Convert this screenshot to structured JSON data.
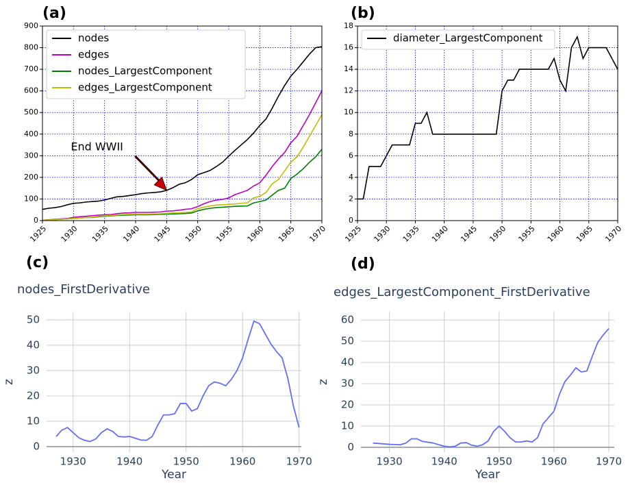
{
  "chart_data": [
    {
      "type": "line",
      "label": "(a)",
      "style": "matplotlib",
      "x": [
        1925,
        1926,
        1927,
        1928,
        1929,
        1930,
        1931,
        1932,
        1933,
        1934,
        1935,
        1936,
        1937,
        1938,
        1939,
        1940,
        1941,
        1942,
        1943,
        1944,
        1945,
        1946,
        1947,
        1948,
        1949,
        1950,
        1951,
        1952,
        1953,
        1954,
        1955,
        1956,
        1957,
        1958,
        1959,
        1960,
        1961,
        1962,
        1963,
        1964,
        1965,
        1966,
        1967,
        1968,
        1969,
        1970
      ],
      "series": [
        {
          "name": "nodes",
          "color": "#000000",
          "values": [
            52,
            57,
            60,
            65,
            73,
            80,
            82,
            86,
            88,
            90,
            95,
            103,
            110,
            112,
            116,
            120,
            125,
            128,
            130,
            133,
            140,
            152,
            168,
            175,
            190,
            212,
            222,
            232,
            250,
            270,
            298,
            325,
            350,
            375,
            405,
            440,
            470,
            520,
            575,
            625,
            668,
            700,
            735,
            770,
            800,
            805
          ]
        },
        {
          "name": "edges",
          "color": "#bf00bf",
          "values": [
            2,
            4,
            6,
            8,
            10,
            15,
            18,
            20,
            23,
            25,
            27,
            28,
            32,
            35,
            36,
            38,
            38,
            38,
            39,
            40,
            44,
            45,
            48,
            52,
            55,
            65,
            78,
            88,
            95,
            98,
            105,
            120,
            130,
            140,
            160,
            175,
            210,
            250,
            285,
            315,
            360,
            390,
            440,
            490,
            545,
            600
          ]
        },
        {
          "name": "nodes_LargestComponent",
          "color": "#008000",
          "values": [
            2,
            3,
            5,
            6,
            8,
            10,
            12,
            14,
            15,
            18,
            20,
            22,
            24,
            25,
            26,
            27,
            27,
            27,
            28,
            29,
            30,
            31,
            32,
            33,
            35,
            45,
            52,
            57,
            60,
            62,
            64,
            66,
            67,
            68,
            82,
            88,
            95,
            118,
            140,
            150,
            195,
            215,
            240,
            270,
            295,
            330
          ]
        },
        {
          "name": "edges_LargestComponent",
          "color": "#bfbf00",
          "values": [
            2,
            3,
            5,
            7,
            8,
            10,
            12,
            14,
            16,
            20,
            22,
            24,
            26,
            28,
            29,
            30,
            30,
            30,
            31,
            32,
            34,
            35,
            36,
            38,
            40,
            55,
            62,
            68,
            72,
            73,
            75,
            77,
            80,
            82,
            105,
            112,
            130,
            170,
            190,
            230,
            270,
            295,
            340,
            390,
            440,
            490
          ]
        }
      ],
      "xlim": [
        1925,
        1970
      ],
      "xticks": [
        1925,
        1930,
        1935,
        1940,
        1945,
        1950,
        1955,
        1960,
        1965,
        1970
      ],
      "ylim": [
        0,
        900
      ],
      "yticks": [
        0,
        100,
        200,
        300,
        400,
        500,
        600,
        700,
        800,
        900
      ],
      "grid": true,
      "grid_color": "#0000ff",
      "legend": "top-left",
      "x_tick_rotation": 45,
      "annotations": [
        {
          "text": "End WWII",
          "x": 1945,
          "y": 140,
          "color": "#cc0000"
        }
      ]
    },
    {
      "type": "line",
      "label": "(b)",
      "style": "matplotlib",
      "x": [
        1925,
        1926,
        1927,
        1928,
        1929,
        1930,
        1931,
        1932,
        1933,
        1934,
        1935,
        1936,
        1937,
        1938,
        1939,
        1940,
        1941,
        1942,
        1943,
        1944,
        1945,
        1946,
        1947,
        1948,
        1949,
        1950,
        1951,
        1952,
        1953,
        1954,
        1955,
        1956,
        1957,
        1958,
        1959,
        1960,
        1961,
        1962,
        1963,
        1964,
        1965,
        1966,
        1967,
        1968,
        1969,
        1970
      ],
      "series": [
        {
          "name": "diameter_LargestComponent",
          "color": "#000000",
          "values": [
            2,
            2,
            5,
            5,
            5,
            6,
            7,
            7,
            7,
            7,
            9,
            9,
            10,
            8,
            8,
            8,
            8,
            8,
            8,
            8,
            8,
            8,
            8,
            8,
            8,
            12,
            13,
            13,
            14,
            14,
            14,
            14,
            14,
            14,
            15,
            13,
            12,
            16,
            17,
            15,
            16,
            16,
            16,
            16,
            15,
            14
          ]
        }
      ],
      "xlim": [
        1925,
        1970
      ],
      "xticks": [
        1925,
        1930,
        1935,
        1940,
        1945,
        1950,
        1955,
        1960,
        1965,
        1970
      ],
      "ylim": [
        0,
        18
      ],
      "yticks": [
        0,
        2,
        4,
        6,
        8,
        10,
        12,
        14,
        16,
        18
      ],
      "grid": true,
      "grid_color": "#0000ff",
      "legend": "top-left",
      "x_tick_rotation": 45
    },
    {
      "type": "line",
      "label": "(c)",
      "style": "plotly",
      "title": "nodes_FirstDerivative",
      "x_label": "Year",
      "y_label": "z",
      "x": [
        1927,
        1928,
        1929,
        1930,
        1931,
        1932,
        1933,
        1934,
        1935,
        1936,
        1937,
        1938,
        1939,
        1940,
        1941,
        1942,
        1943,
        1944,
        1945,
        1946,
        1947,
        1948,
        1949,
        1950,
        1951,
        1952,
        1953,
        1954,
        1955,
        1956,
        1957,
        1958,
        1959,
        1960,
        1961,
        1962,
        1963,
        1964,
        1965,
        1966,
        1967,
        1968,
        1969,
        1970
      ],
      "values": [
        4,
        6.5,
        7.5,
        5.5,
        3.5,
        2.5,
        2,
        3,
        5.5,
        7,
        6,
        4,
        3.8,
        4,
        3.3,
        2.6,
        2.5,
        4,
        8.5,
        12.5,
        12.5,
        13,
        17,
        17,
        14,
        15,
        20,
        24,
        25.5,
        25,
        24,
        26.5,
        30,
        35,
        42.5,
        49.5,
        48.5,
        44.5,
        40.5,
        37.5,
        35,
        27,
        16,
        7.5
      ],
      "color": "#636efa",
      "xlim": [
        1925.3,
        1970.4
      ],
      "xticks": [
        1930,
        1940,
        1950,
        1960,
        1970
      ],
      "ylim": [
        -2.2,
        53.2
      ],
      "yticks": [
        0,
        10,
        20,
        30,
        40,
        50
      ],
      "grid": true,
      "grid_color": "#c8ccd6"
    },
    {
      "type": "line",
      "label": "(d)",
      "style": "plotly",
      "title": "edges_LargestComponent_FirstDerivative",
      "x_label": "Year",
      "y_label": "z",
      "x": [
        1927,
        1928,
        1929,
        1930,
        1931,
        1932,
        1933,
        1934,
        1935,
        1936,
        1937,
        1938,
        1939,
        1940,
        1941,
        1942,
        1943,
        1944,
        1945,
        1946,
        1947,
        1948,
        1949,
        1950,
        1951,
        1952,
        1953,
        1954,
        1955,
        1956,
        1957,
        1958,
        1959,
        1960,
        1961,
        1962,
        1963,
        1964,
        1965,
        1966,
        1967,
        1968,
        1969,
        1970
      ],
      "values": [
        2,
        1.8,
        1.6,
        1.4,
        1.3,
        1.2,
        2,
        4,
        4,
        2.8,
        2.4,
        2,
        1.2,
        0.5,
        0.2,
        0.5,
        2,
        2.2,
        1,
        0.5,
        1.2,
        3,
        7.5,
        10,
        7.5,
        4.5,
        2.5,
        2.5,
        3,
        2.5,
        4.5,
        11,
        14,
        17,
        25,
        31,
        34,
        37.5,
        35.5,
        36,
        43,
        49.5,
        53,
        56
      ],
      "color": "#636efa",
      "xlim": [
        1924.8,
        1971
      ],
      "xticks": [
        1930,
        1940,
        1950,
        1960,
        1970
      ],
      "ylim": [
        -2.3,
        63.9
      ],
      "yticks": [
        0,
        10,
        20,
        30,
        40,
        50,
        60
      ],
      "grid": true,
      "grid_color": "#c8ccd6"
    }
  ]
}
